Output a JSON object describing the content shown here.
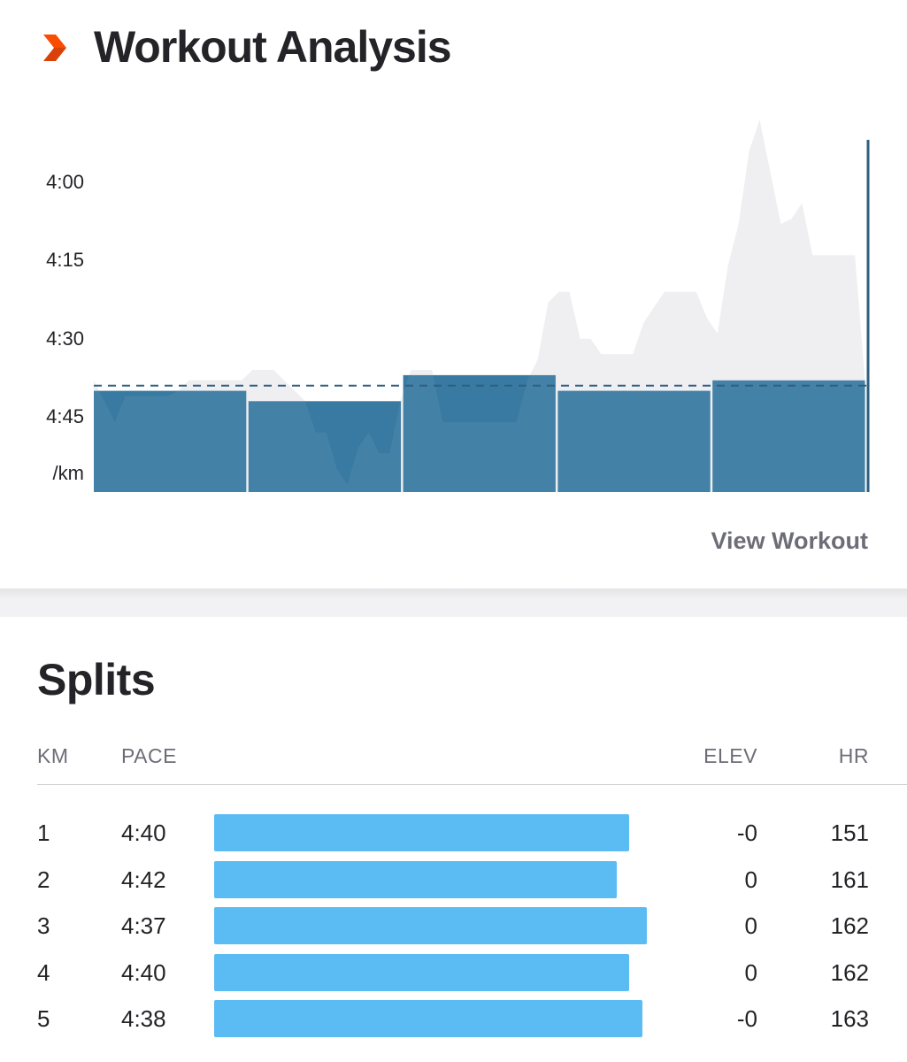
{
  "header": {
    "title": "Workout Analysis",
    "logo_icon": "chevron-right-icon",
    "logo_color": "#fc4c02"
  },
  "analysis": {
    "y_axis_labels": [
      "4:00",
      "4:15",
      "4:30",
      "4:45",
      "/km"
    ],
    "view_workout_label": "View Workout"
  },
  "chart_data": {
    "type": "bar",
    "y_unit": "/km",
    "y_ticks": [
      "4:00",
      "4:15",
      "4:30",
      "4:45"
    ],
    "y_tick_seconds": [
      240,
      255,
      270,
      285
    ],
    "categories": [
      "1",
      "2",
      "3",
      "4",
      "5"
    ],
    "values_seconds": [
      280,
      282,
      277,
      280,
      278
    ],
    "average_pace_seconds": 279,
    "pace_trace_seconds": [
      278,
      282,
      286,
      281,
      281,
      281,
      281,
      281,
      280,
      278,
      278,
      278,
      278,
      278,
      278,
      276,
      276,
      276,
      278,
      280,
      282,
      288,
      288,
      295,
      298,
      291,
      288,
      292,
      292,
      282,
      276,
      276,
      276,
      286,
      286,
      286,
      286,
      286,
      286,
      286,
      286,
      278,
      274,
      263,
      261,
      261,
      270,
      270,
      273,
      273,
      273,
      273,
      267,
      264,
      261,
      261,
      261,
      261,
      266,
      269,
      256,
      248,
      234,
      228,
      238,
      248,
      247,
      244,
      254,
      254,
      254,
      254,
      254,
      279
    ],
    "colors": {
      "bars": "#33769f",
      "trace": "#eeeef1",
      "average_line": "#2f5f80"
    }
  },
  "splits": {
    "title": "Splits",
    "columns": [
      "KM",
      "PACE",
      "ELEV",
      "HR"
    ],
    "bar_color": "#5bbcf4",
    "rows": [
      {
        "km": "1",
        "pace": "4:40",
        "relative_speed": 0.96,
        "elev": "-0",
        "hr": "151"
      },
      {
        "km": "2",
        "pace": "4:42",
        "relative_speed": 0.93,
        "elev": "0",
        "hr": "161"
      },
      {
        "km": "3",
        "pace": "4:37",
        "relative_speed": 1.0,
        "elev": "0",
        "hr": "162"
      },
      {
        "km": "4",
        "pace": "4:40",
        "relative_speed": 0.96,
        "elev": "0",
        "hr": "162"
      },
      {
        "km": "5",
        "pace": "4:38",
        "relative_speed": 0.99,
        "elev": "-0",
        "hr": "163"
      }
    ]
  }
}
